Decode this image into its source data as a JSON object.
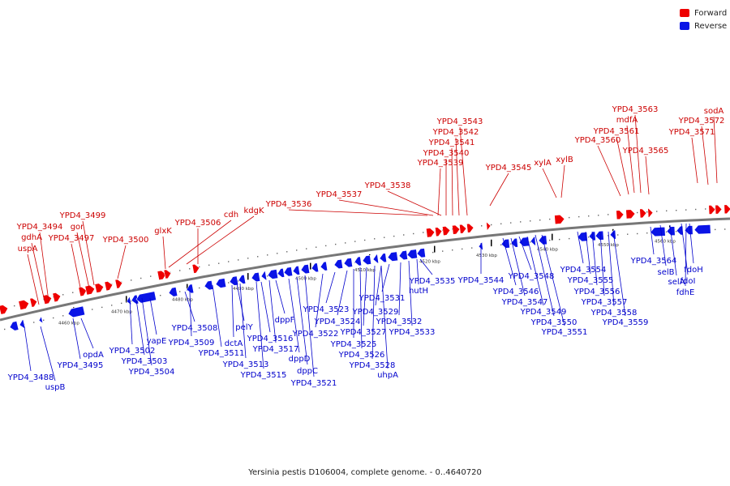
{
  "legend": {
    "forward": {
      "label": "Forward",
      "color": "#ee0000"
    },
    "reverse": {
      "label": "Reverse",
      "color": "#0a14e6"
    }
  },
  "caption": "Yersinia pestis D106004, complete genome. - 0..4640720",
  "colors": {
    "backbone": "#777777",
    "forward_label": "#cc0000",
    "reverse_label": "#0000cc"
  },
  "ticks": [
    "4460 kbp",
    "4470 kbp",
    "4480 kbp",
    "4490 kbp",
    "4500 kbp",
    "4510 kbp",
    "4520 kbp",
    "4530 kbp",
    "4540 kbp",
    "4550 kbp",
    "4560 kbp"
  ],
  "forward_labels": [
    "YPD4_3494",
    "gdhA",
    "uspA",
    "YPD4_3499",
    "gor",
    "YPD4_3497",
    "YPD4_3500",
    "glxK",
    "YPD4_3506",
    "cdh",
    "kdgK",
    "YPD4_3536",
    "YPD4_3537",
    "YPD4_3538",
    "YPD4_3543",
    "YPD4_3542",
    "YPD4_3541",
    "YPD4_3540",
    "YPD4_3539",
    "YPD4_3545",
    "xylA",
    "xylB",
    "YPD4_3563",
    "mdfA",
    "YPD4_3561",
    "YPD4_3560",
    "YPD4_3565",
    "sodA",
    "YPD4_3572",
    "YPD4_3571"
  ],
  "reverse_labels": [
    "YPD4_3488",
    "uspB",
    "opdA",
    "YPD4_3495",
    "YPD4_3502",
    "YPD4_3503",
    "YPD4_3504",
    "yapE",
    "YPD4_3508",
    "YPD4_3509",
    "dctA",
    "YPD4_3511",
    "YPD4_3513",
    "pelY",
    "YPD4_3515",
    "YPD4_3516",
    "dppF",
    "YPD4_3517",
    "dppD",
    "dppC",
    "YPD4_3521",
    "YPD4_3522",
    "YPD4_3523",
    "YPD4_3524",
    "YPD4_3525",
    "YPD4_3526",
    "YPD4_3527",
    "YPD4_3528",
    "uhpA",
    "YPD4_3529",
    "YPD4_3531",
    "YPD4_3532",
    "YPD4_3533",
    "hutH",
    "YPD4_3535",
    "YPD4_3544",
    "YPD4_3546",
    "YPD4_3547",
    "YPD4_3548",
    "YPD4_3549",
    "YPD4_3550",
    "YPD4_3551",
    "YPD4_3554",
    "YPD4_3555",
    "YPD4_3556",
    "YPD4_3557",
    "YPD4_3558",
    "YPD4_3559",
    "YPD4_3564",
    "selB",
    "selA",
    "fdoI",
    "fdoH",
    "fdhE"
  ]
}
